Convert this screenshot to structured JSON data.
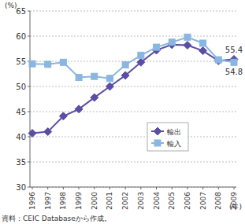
{
  "chart_data": {
    "type": "line",
    "x_label": "(年)",
    "y_label": "(%)",
    "source": "資料：CEIC Databaseから作成。",
    "categories": [
      "1996",
      "1997",
      "1998",
      "1999",
      "2000",
      "2001",
      "2002",
      "2003",
      "2004",
      "2005",
      "2006",
      "2007",
      "2008",
      "2009"
    ],
    "series": [
      {
        "name": "輸出",
        "color": "#5b4ea3",
        "marker": "diamond",
        "values": [
          40.7,
          41.0,
          44.1,
          45.5,
          47.8,
          50.0,
          52.2,
          54.8,
          57.2,
          58.3,
          58.2,
          57.1,
          55.1,
          55.4
        ],
        "value_labels": [
          null,
          null,
          null,
          null,
          null,
          null,
          null,
          null,
          null,
          null,
          null,
          null,
          null,
          "55.4"
        ]
      },
      {
        "name": "輸入",
        "color": "#8ab6e0",
        "marker": "square",
        "values": [
          54.5,
          54.4,
          54.8,
          51.8,
          52.0,
          51.6,
          54.3,
          56.2,
          57.8,
          58.8,
          59.8,
          58.6,
          55.3,
          54.8
        ],
        "value_labels": [
          null,
          null,
          null,
          null,
          null,
          null,
          null,
          null,
          null,
          null,
          null,
          null,
          null,
          "54.8"
        ]
      }
    ],
    "ylim": [
      30,
      65
    ],
    "yticks": [
      30,
      35,
      40,
      45,
      50,
      55,
      60,
      65
    ],
    "grid": true,
    "legend": "right"
  }
}
